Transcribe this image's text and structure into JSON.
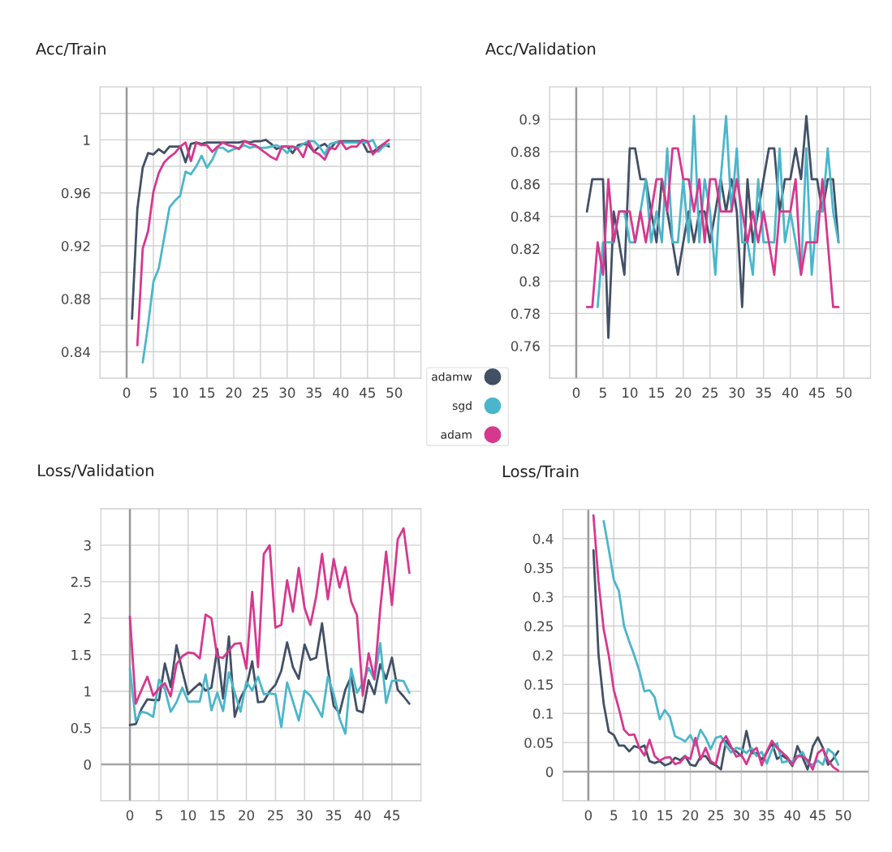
{
  "chart_data": [
    {
      "type": "line",
      "title": "Acc/Train",
      "x": [
        1,
        2,
        3,
        4,
        5,
        6,
        7,
        8,
        9,
        10,
        11,
        12,
        13,
        14,
        15,
        16,
        17,
        18,
        19,
        20,
        21,
        22,
        23,
        24,
        25,
        26,
        27,
        28,
        29,
        30,
        31,
        32,
        33,
        34,
        35,
        36,
        37,
        38,
        39,
        40,
        41,
        42,
        43,
        44,
        45,
        46,
        47,
        48,
        49
      ],
      "xlim": [
        -5,
        55
      ],
      "xticks": [
        {
          "value": -5,
          "label": null
        },
        0,
        5,
        10,
        15,
        20,
        25,
        30,
        35,
        40,
        45,
        50,
        {
          "value": 55,
          "label": null
        }
      ],
      "ylim": [
        0.82,
        1.04
      ],
      "yticks": [
        {
          "value": 0.82,
          "label": null
        },
        0.84,
        {
          "value": 0.86,
          "label": null
        },
        0.88,
        {
          "value": 0.9,
          "label": null
        },
        0.92,
        {
          "value": 0.94,
          "label": null
        },
        0.96,
        {
          "value": 0.98,
          "label": null
        },
        1,
        {
          "value": 1.02,
          "label": null
        }
      ],
      "grid": true,
      "legend": "bottom right",
      "line_style": "solid",
      "ref_lines": [
        {
          "axis": "x",
          "value": 0,
          "color": "#999999"
        }
      ],
      "series": [
        {
          "name": "adamw",
          "color": "#425066",
          "values": [
            0.865,
            0.948,
            0.979,
            0.99,
            0.989,
            0.993,
            0.99,
            0.995,
            0.995,
            0.995,
            0.983,
            0.997,
            0.998,
            0.997,
            0.998,
            0.998,
            0.998,
            0.998,
            0.998,
            0.998,
            0.998,
            0.999,
            0.998,
            0.999,
            0.999,
            1.0,
            0.997,
            0.993,
            0.995,
            0.995,
            0.99,
            0.996,
            0.997,
            0.996,
            0.991,
            0.995,
            0.997,
            0.993,
            0.998,
            0.999,
            0.999,
            0.999,
            0.999,
            0.999,
            0.991,
            0.991,
            0.994,
            0.997,
            0.995
          ]
        },
        {
          "name": "sgd",
          "color": "#4bb6cb",
          "values": [
            null,
            null,
            0.832,
            0.86,
            0.893,
            0.903,
            0.926,
            0.949,
            0.954,
            0.958,
            0.976,
            0.974,
            0.98,
            0.988,
            0.979,
            0.985,
            0.994,
            0.994,
            0.991,
            0.993,
            0.994,
            0.996,
            0.994,
            0.995,
            0.994,
            0.994,
            0.995,
            0.996,
            0.994,
            0.99,
            0.995,
            0.994,
            0.997,
            0.999,
            0.999,
            0.995,
            0.989,
            0.997,
            0.998,
            0.998,
            0.998,
            0.998,
            0.998,
            0.998,
            0.998,
            1.0,
            0.991,
            0.995,
            0.997
          ]
        },
        {
          "name": "adam",
          "color": "#d6388e",
          "values": [
            null,
            0.845,
            0.918,
            0.931,
            0.961,
            0.975,
            0.983,
            0.987,
            0.99,
            0.995,
            0.998,
            0.984,
            0.998,
            0.996,
            0.996,
            0.991,
            0.995,
            0.998,
            0.996,
            0.995,
            0.993,
            0.999,
            0.997,
            0.996,
            0.993,
            0.99,
            0.987,
            0.985,
            0.995,
            0.995,
            0.995,
            0.993,
            0.987,
            0.999,
            0.991,
            0.989,
            0.985,
            0.994,
            0.993,
            0.999,
            0.993,
            0.995,
            0.995,
            1.0,
            0.999,
            0.989,
            0.993,
            0.997,
            1.0
          ]
        }
      ]
    },
    {
      "type": "line",
      "title": "Acc/Validation",
      "x": [
        2,
        3,
        4,
        5,
        6,
        7,
        8,
        9,
        10,
        11,
        12,
        13,
        14,
        15,
        16,
        17,
        18,
        19,
        20,
        21,
        22,
        23,
        24,
        25,
        26,
        27,
        28,
        29,
        30,
        31,
        32,
        33,
        34,
        35,
        36,
        37,
        38,
        39,
        40,
        41,
        42,
        43,
        44,
        45,
        46,
        47,
        48,
        49
      ],
      "xlim": [
        -5,
        55
      ],
      "xticks": [
        {
          "value": -5,
          "label": null
        },
        0,
        5,
        10,
        15,
        20,
        25,
        30,
        35,
        40,
        45,
        50,
        {
          "value": 55,
          "label": null
        }
      ],
      "ylim": [
        0.74,
        0.92
      ],
      "yticks": [
        {
          "value": 0.74,
          "label": null
        },
        0.76,
        0.78,
        0.8,
        0.82,
        0.84,
        0.86,
        0.88,
        0.9
      ],
      "grid": true,
      "line_style": "solid",
      "ref_lines": [
        {
          "axis": "x",
          "value": 0,
          "color": "#999999"
        }
      ],
      "series": [
        {
          "color": "#425066",
          "values": [
            0.843,
            0.863,
            0.863,
            0.863,
            0.765,
            0.843,
            0.824,
            0.804,
            0.882,
            0.882,
            0.863,
            0.863,
            0.843,
            0.824,
            0.863,
            0.843,
            0.824,
            0.804,
            0.824,
            0.843,
            0.824,
            0.843,
            0.843,
            0.824,
            0.843,
            0.863,
            0.843,
            0.863,
            0.843,
            0.784,
            0.863,
            0.824,
            0.843,
            0.863,
            0.882,
            0.882,
            0.843,
            0.863,
            0.863,
            0.882,
            0.863,
            0.902,
            0.863,
            0.863,
            0.843,
            0.863,
            0.863,
            0.824
          ]
        },
        {
          "color": "#4bb6cb",
          "values": [
            null,
            null,
            0.784,
            0.824,
            0.824,
            0.824,
            0.843,
            0.843,
            0.824,
            0.824,
            0.843,
            0.863,
            0.824,
            0.843,
            0.824,
            0.882,
            0.824,
            0.824,
            0.863,
            0.824,
            0.902,
            0.824,
            0.863,
            0.843,
            0.804,
            0.863,
            0.902,
            0.843,
            0.882,
            0.824,
            0.824,
            0.804,
            0.863,
            0.824,
            0.824,
            0.824,
            0.882,
            0.824,
            0.843,
            0.824,
            0.804,
            0.882,
            0.804,
            0.843,
            0.843,
            0.882,
            0.843,
            0.824
          ]
        },
        {
          "color": "#d6388e",
          "values": [
            0.784,
            0.784,
            0.824,
            0.804,
            0.863,
            0.824,
            0.843,
            0.843,
            0.843,
            0.824,
            0.843,
            0.824,
            0.843,
            0.863,
            0.863,
            0.843,
            0.882,
            0.882,
            0.863,
            0.863,
            0.843,
            0.863,
            0.824,
            0.863,
            0.863,
            0.843,
            0.843,
            0.843,
            0.863,
            0.843,
            0.824,
            0.843,
            0.824,
            0.843,
            0.824,
            0.804,
            0.843,
            0.843,
            0.843,
            0.863,
            0.804,
            0.824,
            0.824,
            0.824,
            0.863,
            0.824,
            0.784,
            0.784
          ]
        }
      ]
    },
    {
      "type": "line",
      "title": "Loss/Validation",
      "x": [
        0,
        1,
        2,
        3,
        4,
        5,
        6,
        7,
        8,
        9,
        10,
        11,
        12,
        13,
        14,
        15,
        16,
        17,
        18,
        19,
        20,
        21,
        22,
        23,
        24,
        25,
        26,
        27,
        28,
        29,
        30,
        31,
        32,
        33,
        34,
        35,
        36,
        37,
        38,
        39,
        40,
        41,
        42,
        43,
        44,
        45,
        46,
        47,
        48
      ],
      "xlim": [
        -5,
        50
      ],
      "xticks": [
        {
          "value": -5,
          "label": null
        },
        0,
        5,
        10,
        15,
        20,
        25,
        30,
        35,
        40,
        45,
        {
          "value": 50,
          "label": null
        }
      ],
      "ylim": [
        -0.5,
        3.5
      ],
      "yticks": [
        {
          "value": -0.5,
          "label": null
        },
        0,
        0.5,
        1,
        1.5,
        2,
        2.5,
        3,
        {
          "value": 3.5,
          "label": null
        }
      ],
      "grid": true,
      "line_style": "solid",
      "ref_lines": [
        {
          "axis": "x",
          "value": 0,
          "color": "#999999"
        },
        {
          "axis": "y",
          "value": 0,
          "color": "#a3a3a3"
        }
      ],
      "series": [
        {
          "color": "#425066",
          "values": [
            0.54,
            0.55,
            0.76,
            0.89,
            0.88,
            0.88,
            1.38,
            1.06,
            1.63,
            1.28,
            0.96,
            1.04,
            1.11,
            1.01,
            1.05,
            1.58,
            0.9,
            1.75,
            0.65,
            0.91,
            1.06,
            1.41,
            0.85,
            0.86,
            1.0,
            1.09,
            1.28,
            1.67,
            1.33,
            1.17,
            1.64,
            1.43,
            1.46,
            1.93,
            1.31,
            0.8,
            0.7,
            1.02,
            1.2,
            0.74,
            0.71,
            1.15,
            0.96,
            1.37,
            1.17,
            1.46,
            1.02,
            0.93,
            0.83
          ]
        },
        {
          "color": "#4bb6cb",
          "values": [
            1.31,
            0.6,
            0.72,
            0.7,
            0.65,
            1.16,
            1.03,
            0.72,
            0.85,
            1.05,
            0.86,
            0.86,
            0.86,
            1.23,
            0.74,
            0.98,
            0.73,
            1.26,
            0.98,
            0.72,
            1.13,
            1.01,
            1.2,
            0.96,
            0.97,
            0.96,
            0.51,
            1.12,
            0.86,
            0.6,
            1.01,
            0.94,
            0.8,
            0.65,
            1.2,
            0.96,
            0.63,
            0.42,
            1.31,
            0.98,
            1.11,
            1.32,
            1.16,
            1.66,
            0.84,
            1.14,
            1.15,
            1.14,
            0.98
          ]
        },
        {
          "color": "#d6388e",
          "values": [
            2.02,
            0.83,
            1.02,
            1.2,
            0.94,
            1.04,
            1.11,
            0.93,
            1.37,
            1.48,
            1.53,
            1.52,
            1.45,
            2.05,
            2.0,
            1.47,
            1.46,
            1.56,
            1.65,
            1.66,
            1.31,
            2.36,
            1.33,
            2.88,
            3.0,
            1.87,
            1.91,
            2.52,
            2.09,
            2.69,
            2.14,
            1.91,
            2.3,
            2.88,
            2.26,
            2.81,
            2.42,
            2.7,
            2.23,
            2.04,
            0.94,
            1.52,
            1.17,
            2.13,
            2.91,
            2.18,
            3.08,
            3.23,
            2.62
          ]
        }
      ]
    },
    {
      "type": "line",
      "title": "Loss/Train",
      "x": [
        1,
        2,
        3,
        4,
        5,
        6,
        7,
        8,
        9,
        10,
        11,
        12,
        13,
        14,
        15,
        16,
        17,
        18,
        19,
        20,
        21,
        22,
        23,
        24,
        25,
        26,
        27,
        28,
        29,
        30,
        31,
        32,
        33,
        34,
        35,
        36,
        37,
        38,
        39,
        40,
        41,
        42,
        43,
        44,
        45,
        46,
        47,
        48,
        49
      ],
      "xlim": [
        -5,
        55
      ],
      "xticks": [
        {
          "value": -5,
          "label": null
        },
        0,
        5,
        10,
        15,
        20,
        25,
        30,
        35,
        40,
        45,
        50,
        {
          "value": 55,
          "label": null
        }
      ],
      "ylim": [
        -0.05,
        0.45
      ],
      "yticks": [
        {
          "value": -0.05,
          "label": null
        },
        0,
        0.05,
        0.1,
        0.15,
        0.2,
        0.25,
        0.3,
        0.35,
        0.4
      ],
      "grid": true,
      "line_style": "solid",
      "ref_lines": [
        {
          "axis": "x",
          "value": 0,
          "color": "#999999"
        },
        {
          "axis": "y",
          "value": 0,
          "color": "#a3a3a3"
        }
      ],
      "series": [
        {
          "color": "#425066",
          "values": [
            0.38,
            0.2,
            0.117,
            0.069,
            0.063,
            0.045,
            0.045,
            0.035,
            0.044,
            0.041,
            0.045,
            0.018,
            0.015,
            0.018,
            0.011,
            0.014,
            0.024,
            0.02,
            0.027,
            0.012,
            0.01,
            0.026,
            0.027,
            0.015,
            0.011,
            0.004,
            0.053,
            0.041,
            0.035,
            0.027,
            0.07,
            0.032,
            0.032,
            0.021,
            0.033,
            0.049,
            0.022,
            0.028,
            0.022,
            0.01,
            0.044,
            0.025,
            0.004,
            0.043,
            0.059,
            0.041,
            0.012,
            0.022,
            0.035
          ]
        },
        {
          "color": "#4bb6cb",
          "values": [
            null,
            null,
            0.43,
            0.382,
            0.329,
            0.31,
            0.25,
            0.224,
            0.2,
            0.173,
            0.138,
            0.14,
            0.128,
            0.09,
            0.106,
            0.094,
            0.061,
            0.057,
            0.052,
            0.063,
            0.045,
            0.072,
            0.058,
            0.039,
            0.058,
            0.061,
            0.045,
            0.033,
            0.041,
            0.039,
            0.032,
            0.041,
            0.027,
            0.034,
            0.014,
            0.038,
            0.049,
            0.016,
            0.018,
            0.018,
            0.025,
            0.034,
            0.015,
            0.012,
            0.019,
            0.012,
            0.039,
            0.032,
            0.012
          ]
        },
        {
          "color": "#d6388e",
          "values": [
            0.44,
            0.326,
            0.245,
            0.2,
            0.14,
            0.108,
            0.072,
            0.063,
            0.064,
            0.041,
            0.028,
            0.055,
            0.027,
            0.019,
            0.024,
            0.025,
            0.013,
            0.016,
            0.026,
            0.022,
            0.058,
            0.021,
            0.041,
            0.018,
            0.013,
            0.049,
            0.061,
            0.043,
            0.026,
            0.029,
            0.013,
            0.034,
            0.041,
            0.011,
            0.035,
            0.053,
            0.041,
            0.033,
            0.025,
            0.012,
            0.027,
            0.026,
            0.02,
            0.004,
            0.032,
            0.039,
            0.02,
            0.008,
            0.002
          ]
        }
      ]
    }
  ]
}
